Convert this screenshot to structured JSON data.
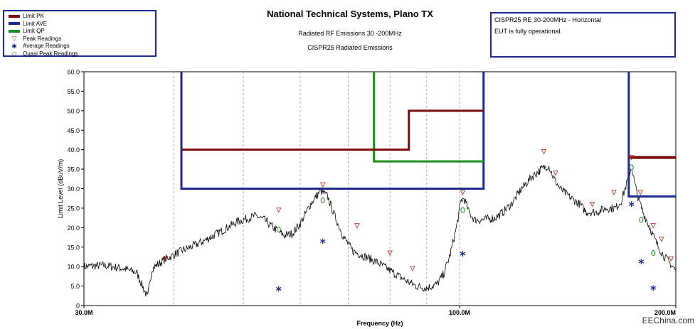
{
  "header": {
    "title": "National Technical Systems, Plano TX",
    "subtitle1": "Radiated RF Emissions 30 -200MHz",
    "subtitle2": "CISPR25 Radiated Emissions"
  },
  "legend": {
    "items": [
      {
        "label": "Limit PK",
        "kind": "line",
        "color": "#7b0a0a"
      },
      {
        "label": "Limit AVE",
        "kind": "line",
        "color": "#1b2a8f"
      },
      {
        "label": "Limit QP",
        "kind": "line",
        "color": "#1e8c1e"
      },
      {
        "label": "Peak Readings",
        "kind": "symbol",
        "symbol": "▽",
        "color": "#c0392b"
      },
      {
        "label": "Average Readings",
        "kind": "symbol",
        "symbol": "✱",
        "color": "#1b2a8f"
      },
      {
        "label": "Quasi Peak Readings",
        "kind": "symbol",
        "symbol": "◇",
        "color": "#1e8c1e"
      }
    ]
  },
  "info": {
    "line1": "CISPR25 RE 30-200MHz - Horizontal",
    "line2": "EUT is fully operational."
  },
  "watermark": "EEChina.com",
  "chart_data": {
    "type": "line",
    "xlabel": "Frequency (Hz)",
    "ylabel": "Limit Level (dBuV/m)",
    "x_scale": "log",
    "xlim": [
      30,
      200
    ],
    "ylim": [
      0,
      60
    ],
    "x_ticks": [
      {
        "value": 30,
        "label": "30.0M"
      },
      {
        "value": 100,
        "label": "100.0M"
      },
      {
        "value": 200,
        "label": "200.0M"
      }
    ],
    "x_minor_gridlines": [
      40,
      50,
      60,
      70,
      80,
      90,
      100
    ],
    "y_ticks": [
      "0",
      "5.0",
      "10.0",
      "15.0",
      "20.0",
      "25.0",
      "30.0",
      "35.0",
      "40.0",
      "45.0",
      "50.0",
      "55.0",
      "60.0"
    ],
    "grid": true,
    "limits": {
      "pk": [
        {
          "x": [
            41,
            85
          ],
          "y": 40
        },
        {
          "x": [
            85,
            108
          ],
          "y": 50
        },
        {
          "x": [
            172,
            200
          ],
          "y": 38
        }
      ],
      "avg": [
        {
          "x": [
            41,
            108
          ],
          "y": 30,
          "vertical_edges": true
        },
        {
          "x": [
            172,
            200
          ],
          "y": 28,
          "left_edge": true
        }
      ],
      "qp": [
        {
          "x": [
            76,
            108
          ],
          "y": 37,
          "left_edge": true
        }
      ]
    },
    "trace": [
      [
        30,
        10
      ],
      [
        32,
        10.3
      ],
      [
        34,
        9.5
      ],
      [
        35.5,
        8.5
      ],
      [
        36.4,
        4
      ],
      [
        36.8,
        2
      ],
      [
        37.3,
        9.5
      ],
      [
        39,
        12
      ],
      [
        41,
        14
      ],
      [
        44,
        16.5
      ],
      [
        46,
        18.5
      ],
      [
        49,
        21.5
      ],
      [
        52,
        23
      ],
      [
        53.5,
        22
      ],
      [
        55,
        20
      ],
      [
        57,
        18
      ],
      [
        58.5,
        18.5
      ],
      [
        60,
        21
      ],
      [
        62,
        26
      ],
      [
        64,
        29.5
      ],
      [
        65.5,
        28
      ],
      [
        67,
        23
      ],
      [
        69,
        17.5
      ],
      [
        71,
        14
      ],
      [
        74,
        12.5
      ],
      [
        77,
        11
      ],
      [
        80,
        9
      ],
      [
        84,
        6.5
      ],
      [
        87,
        5
      ],
      [
        90,
        4.5
      ],
      [
        93,
        5.5
      ],
      [
        95,
        8
      ],
      [
        97,
        13
      ],
      [
        99,
        20
      ],
      [
        100.5,
        27
      ],
      [
        101.5,
        27.5
      ],
      [
        103,
        24
      ],
      [
        105,
        22
      ],
      [
        108,
        22
      ],
      [
        112,
        22.5
      ],
      [
        115,
        24
      ],
      [
        118,
        26
      ],
      [
        122,
        30
      ],
      [
        126,
        33
      ],
      [
        130,
        35
      ],
      [
        133,
        36
      ],
      [
        135,
        33
      ],
      [
        138,
        30
      ],
      [
        142,
        28
      ],
      [
        147,
        26
      ],
      [
        150,
        24
      ],
      [
        155,
        24
      ],
      [
        160,
        25
      ],
      [
        165,
        25
      ],
      [
        168,
        27
      ],
      [
        170,
        30
      ],
      [
        172,
        33
      ],
      [
        173.5,
        36
      ],
      [
        175,
        32
      ],
      [
        177,
        28
      ],
      [
        180,
        24
      ],
      [
        184,
        20
      ],
      [
        188,
        16
      ],
      [
        192,
        13
      ],
      [
        196,
        11
      ],
      [
        200,
        9
      ]
    ],
    "peak_readings": [
      [
        39,
        12
      ],
      [
        56,
        24.5
      ],
      [
        64.5,
        31
      ],
      [
        72,
        20.5
      ],
      [
        80,
        13.5
      ],
      [
        86,
        9.5
      ],
      [
        101,
        29
      ],
      [
        131,
        39.5
      ],
      [
        136,
        34
      ],
      [
        153,
        26
      ],
      [
        164,
        29
      ],
      [
        173.5,
        38
      ],
      [
        178.5,
        29
      ],
      [
        186,
        20.5
      ],
      [
        191,
        17
      ],
      [
        197,
        12
      ]
    ],
    "average_readings": [
      [
        56,
        4.3
      ],
      [
        64.5,
        16.5
      ],
      [
        101,
        13.3
      ],
      [
        173.5,
        26
      ],
      [
        179,
        11.3
      ],
      [
        186,
        4.5
      ]
    ],
    "qp_readings": [
      [
        56,
        19.5
      ],
      [
        64.5,
        27
      ],
      [
        101,
        24.5
      ],
      [
        173.5,
        35.5
      ],
      [
        179,
        22
      ],
      [
        186,
        13.5
      ]
    ]
  }
}
